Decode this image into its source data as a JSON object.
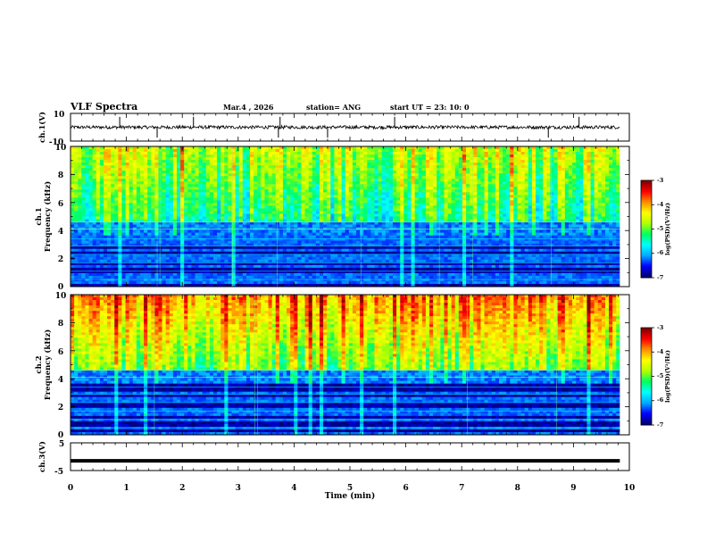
{
  "header": {
    "title": "VLF Spectra",
    "date": "Mar.4 , 2026",
    "station": "station= ANG",
    "start_ut": "start  UT =   23: 10: 0"
  },
  "chart_data": [
    {
      "id": "ch1_waveform",
      "type": "line",
      "ylabel": "ch.1(V)",
      "ylim": [
        -10,
        10
      ],
      "yticks": [
        "10",
        "-10"
      ],
      "xlim": [
        0,
        10
      ],
      "baseline": 0,
      "noise_amplitude": 1.2,
      "spike_times": [
        0.88,
        1.55,
        2.2,
        3.72,
        3.75,
        4.6,
        5.8,
        8.55,
        9.1
      ],
      "data_end_min": 9.83
    },
    {
      "id": "ch1_spectrogram",
      "type": "heatmap",
      "ylabel_line1": "ch.1",
      "ylabel_line2": "Frequency (kHz)",
      "ylim": [
        0,
        10
      ],
      "yticks": [
        "0",
        "2",
        "4",
        "6",
        "8",
        "10"
      ],
      "xlim": [
        0,
        10
      ],
      "data_end_min": 9.83,
      "colorbar_label": "log(PSD)(V²/Hz)",
      "colorbar_ticks": [
        "-3",
        "-4",
        "-5",
        "-6",
        "-7"
      ],
      "clim": [
        -7,
        -3
      ],
      "profile": "ch1"
    },
    {
      "id": "ch2_spectrogram",
      "type": "heatmap",
      "ylabel_line1": "ch.2",
      "ylabel_line2": "Frequency (kHz)",
      "ylim": [
        0,
        10
      ],
      "yticks": [
        "0",
        "2",
        "4",
        "6",
        "8",
        "10"
      ],
      "xlim": [
        0,
        10
      ],
      "data_end_min": 9.83,
      "colorbar_label": "log(PSD)(V²/Hz)",
      "colorbar_ticks": [
        "-3",
        "-4",
        "-5",
        "-6",
        "-7"
      ],
      "clim": [
        -7,
        -3
      ],
      "profile": "ch2"
    },
    {
      "id": "ch3_waveform",
      "type": "line",
      "ylabel": "ch.3(V)",
      "ylim": [
        -5,
        5
      ],
      "yticks": [
        "5",
        "-5"
      ],
      "xlim": [
        0,
        10
      ],
      "baseline": -1.5,
      "data_end_min": 9.83
    }
  ],
  "x_axis": {
    "label": "Time  (min)",
    "ticks": [
      "0",
      "1",
      "2",
      "3",
      "4",
      "5",
      "6",
      "7",
      "8",
      "9",
      "10"
    ]
  },
  "colormap": [
    "#000070",
    "#0000ff",
    "#00aaff",
    "#00ffff",
    "#00ff60",
    "#b0ff00",
    "#ffff00",
    "#ff9000",
    "#ff0000",
    "#800000"
  ]
}
